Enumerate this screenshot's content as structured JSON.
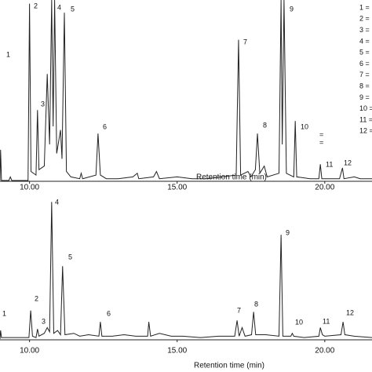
{
  "chart_data": [
    {
      "type": "line",
      "x_label": "Retention time (min)",
      "color": "#222222",
      "xlim": [
        9,
        21.6
      ],
      "ylim": [
        0,
        100
      ],
      "xticks": [
        {
          "value": 10,
          "label": "10.00"
        },
        {
          "value": 15,
          "label": "15.00"
        },
        {
          "value": 20,
          "label": "20.00"
        }
      ],
      "peak_labels": [
        "1",
        "2",
        "3",
        "4",
        "5",
        "6",
        "7",
        "8",
        "9",
        "10",
        "11",
        "12"
      ],
      "legend": [
        "1 =",
        "2 =",
        "3 =",
        "4 =",
        "5 =",
        "6 =",
        "7 =",
        "8 =",
        "9 =",
        "10 =",
        "11 =",
        "12 ="
      ],
      "extra_labels": [
        "=",
        "="
      ],
      "x": [
        9.0,
        9.02,
        9.05,
        9.3,
        9.35,
        9.4,
        9.95,
        10.0,
        10.05,
        10.22,
        10.27,
        10.32,
        10.5,
        10.6,
        10.68,
        10.75,
        10.8,
        10.85,
        10.92,
        11.05,
        11.1,
        11.18,
        11.25,
        11.4,
        11.7,
        11.75,
        11.8,
        12.25,
        12.32,
        12.4,
        12.6,
        13.0,
        13.5,
        13.65,
        13.7,
        14.2,
        14.3,
        14.4,
        15.0,
        15.5,
        16.0,
        16.5,
        17.0,
        17.08,
        17.15,
        17.4,
        17.5,
        17.65,
        17.72,
        17.8,
        17.95,
        18.05,
        18.45,
        18.52,
        18.56,
        18.62,
        18.7,
        18.95,
        19.0,
        19.05,
        19.5,
        19.8,
        19.85,
        19.9,
        20.5,
        20.6,
        20.65,
        21.0,
        21.2,
        21.6
      ],
      "values": [
        0,
        17,
        0,
        0,
        2,
        0,
        0,
        98,
        5,
        3,
        39,
        6,
        8,
        59,
        20,
        100,
        30,
        100,
        15,
        28,
        12,
        93,
        5,
        2,
        1,
        4,
        1,
        3,
        26,
        3,
        1,
        1,
        2,
        4,
        1,
        2,
        5,
        1,
        2,
        1,
        1,
        2,
        3,
        78,
        3,
        5,
        2,
        6,
        26,
        4,
        8,
        2,
        4,
        100,
        20,
        100,
        4,
        2,
        33,
        2,
        1,
        1,
        9,
        1,
        1,
        7,
        1,
        2,
        1,
        1
      ]
    },
    {
      "type": "line",
      "x_label": "Retention time (min)",
      "color": "#222222",
      "xlim": [
        9,
        21.6
      ],
      "ylim": [
        0,
        100
      ],
      "xticks": [
        {
          "value": 10,
          "label": "10.00"
        },
        {
          "value": 15,
          "label": "15.00"
        },
        {
          "value": 20,
          "label": "20.00"
        }
      ],
      "peak_labels": [
        "1",
        "2",
        "3",
        "4",
        "5",
        "6",
        "7",
        "8",
        "9",
        "10",
        "11",
        "12"
      ],
      "x": [
        9.0,
        9.02,
        9.05,
        9.5,
        9.98,
        10.04,
        10.1,
        10.22,
        10.27,
        10.32,
        10.5,
        10.6,
        10.68,
        10.75,
        10.82,
        10.95,
        11.05,
        11.12,
        11.2,
        11.5,
        11.7,
        12.0,
        12.35,
        12.4,
        12.45,
        12.8,
        13.2,
        13.6,
        14.0,
        14.04,
        14.1,
        14.4,
        14.8,
        15.2,
        15.8,
        16.4,
        16.95,
        17.03,
        17.1,
        17.2,
        17.3,
        17.52,
        17.59,
        17.66,
        18.0,
        18.45,
        18.52,
        18.58,
        18.85,
        18.9,
        18.95,
        19.3,
        19.8,
        19.85,
        19.92,
        20.0,
        20.55,
        20.62,
        20.68,
        21.0,
        21.6
      ],
      "values": [
        0,
        6,
        1,
        1,
        1,
        20,
        2,
        1,
        7,
        2,
        4,
        8,
        5,
        96,
        4,
        6,
        3,
        51,
        3,
        4,
        2,
        3,
        2,
        12,
        2,
        2,
        3,
        2,
        2,
        12,
        2,
        4,
        2,
        2,
        1,
        2,
        2,
        13,
        2,
        8,
        2,
        3,
        19,
        3,
        3,
        2,
        73,
        2,
        2,
        4,
        2,
        1,
        2,
        8,
        3,
        2,
        3,
        12,
        3,
        2,
        1
      ]
    }
  ]
}
